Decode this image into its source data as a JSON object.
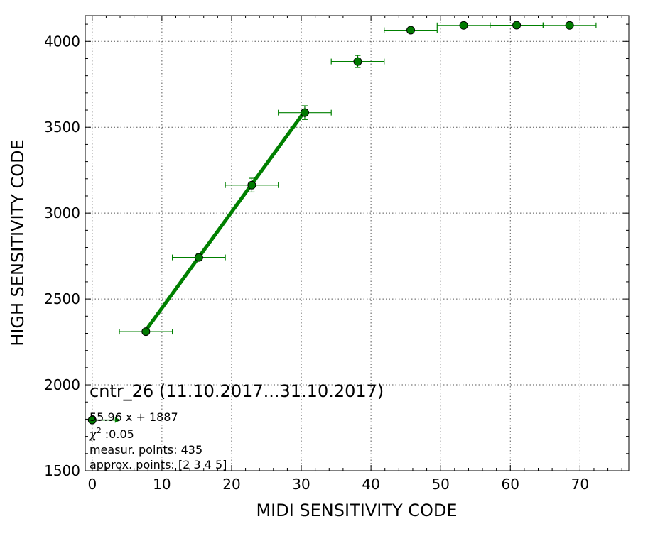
{
  "colors": {
    "series": "#008000",
    "marker_face": "#007a00",
    "marker_edge": "#000000",
    "grid": "#555555"
  },
  "chart_data": {
    "type": "scatter",
    "xlabel": "MIDI SENSITIVITY CODE",
    "ylabel": "HIGH SENSITIVITY CODE",
    "xlim": [
      -1,
      77
    ],
    "ylim": [
      1500,
      4150
    ],
    "xticks": [
      0,
      10,
      20,
      30,
      40,
      50,
      60,
      70
    ],
    "yticks": [
      1500,
      2000,
      2500,
      3000,
      3500,
      4000
    ],
    "grid": true,
    "points": [
      {
        "x": 7.7,
        "y": 2310,
        "xerr": 3.8,
        "yerr": 15
      },
      {
        "x": 15.3,
        "y": 2742,
        "xerr": 3.8,
        "yerr": 20
      },
      {
        "x": 22.9,
        "y": 3163,
        "xerr": 3.8,
        "yerr": 40
      },
      {
        "x": 30.5,
        "y": 3585,
        "xerr": 3.8,
        "yerr": 40
      },
      {
        "x": 38.1,
        "y": 3883,
        "xerr": 3.8,
        "yerr": 35
      },
      {
        "x": 45.7,
        "y": 4065,
        "xerr": 3.8,
        "yerr": 10
      },
      {
        "x": 53.3,
        "y": 4093,
        "xerr": 3.8,
        "yerr": 5
      },
      {
        "x": 60.9,
        "y": 4094,
        "xerr": 3.8,
        "yerr": 5
      },
      {
        "x": 68.5,
        "y": 4093,
        "xerr": 3.8,
        "yerr": 5
      }
    ],
    "fit_line": {
      "x": [
        7.7,
        30.5
      ],
      "slope": 55.96,
      "intercept": 1887
    },
    "annotation": {
      "title": "cntr_26 (11.10.2017...31.10.2017)",
      "equation": "55.96 x + 1887",
      "chi_symbol": "χ",
      "chi_sup": "2",
      "chi_value": " :0.05",
      "measur_points": "measur. points: 435",
      "approx_points": "approx. points: [2 3 4 5]"
    },
    "legend_marker": {
      "x": 0,
      "y": 1795
    }
  }
}
